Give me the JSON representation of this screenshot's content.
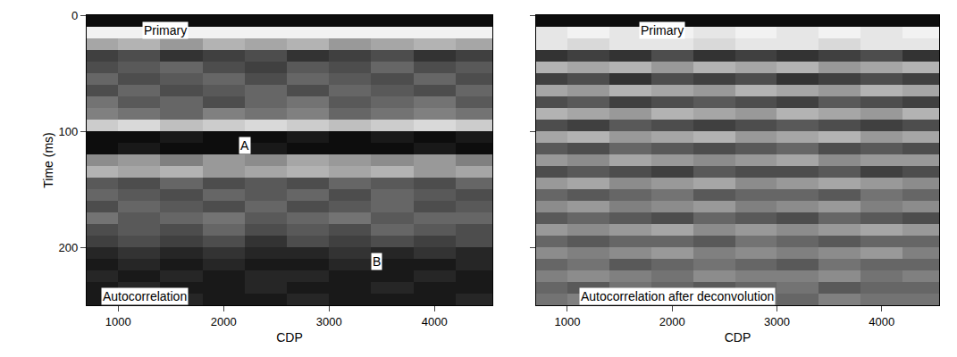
{
  "chart_data": [
    {
      "type": "heatmap",
      "x_label": "CDP",
      "y_label": "Time (ms)",
      "x": [
        800,
        1200,
        1600,
        2000,
        2400,
        2800,
        3200,
        3600,
        4000,
        4400
      ],
      "y": [
        5,
        15,
        25,
        35,
        45,
        55,
        65,
        75,
        85,
        95,
        105,
        115,
        125,
        135,
        145,
        155,
        165,
        175,
        185,
        195,
        205,
        215,
        225,
        235,
        245
      ],
      "xlim": [
        700,
        4550
      ],
      "xticks": [
        1000,
        2000,
        3000,
        4000
      ],
      "ylim": [
        250,
        0
      ],
      "yticks": [
        0,
        100,
        200
      ],
      "zlim": [
        0,
        1
      ],
      "z": [
        [
          0.95,
          0.95,
          0.95,
          0.95,
          0.95,
          0.95,
          0.95,
          0.95,
          0.95,
          0.95
        ],
        [
          0.05,
          0.05,
          0.05,
          0.05,
          0.05,
          0.05,
          0.05,
          0.05,
          0.05,
          0.05
        ],
        [
          0.35,
          0.3,
          0.4,
          0.3,
          0.35,
          0.3,
          0.4,
          0.35,
          0.3,
          0.35
        ],
        [
          0.75,
          0.7,
          0.8,
          0.75,
          0.7,
          0.8,
          0.75,
          0.7,
          0.8,
          0.75
        ],
        [
          0.7,
          0.65,
          0.6,
          0.7,
          0.75,
          0.65,
          0.7,
          0.6,
          0.7,
          0.65
        ],
        [
          0.6,
          0.7,
          0.65,
          0.6,
          0.7,
          0.6,
          0.65,
          0.7,
          0.6,
          0.7
        ],
        [
          0.7,
          0.6,
          0.7,
          0.65,
          0.6,
          0.7,
          0.6,
          0.65,
          0.7,
          0.6
        ],
        [
          0.55,
          0.65,
          0.6,
          0.7,
          0.6,
          0.55,
          0.65,
          0.6,
          0.55,
          0.65
        ],
        [
          0.5,
          0.55,
          0.6,
          0.5,
          0.55,
          0.5,
          0.6,
          0.55,
          0.5,
          0.55
        ],
        [
          0.2,
          0.15,
          0.25,
          0.2,
          0.15,
          0.2,
          0.25,
          0.2,
          0.15,
          0.2
        ],
        [
          0.95,
          0.95,
          0.9,
          0.95,
          0.95,
          0.9,
          0.95,
          0.9,
          0.95,
          0.9
        ],
        [
          0.95,
          0.9,
          0.95,
          0.95,
          0.9,
          0.95,
          0.95,
          0.95,
          0.9,
          0.95
        ],
        [
          0.45,
          0.4,
          0.5,
          0.4,
          0.45,
          0.35,
          0.4,
          0.45,
          0.4,
          0.5
        ],
        [
          0.3,
          0.35,
          0.3,
          0.4,
          0.35,
          0.3,
          0.35,
          0.3,
          0.4,
          0.35
        ],
        [
          0.65,
          0.7,
          0.6,
          0.7,
          0.65,
          0.7,
          0.6,
          0.65,
          0.7,
          0.6
        ],
        [
          0.6,
          0.65,
          0.7,
          0.6,
          0.65,
          0.6,
          0.7,
          0.6,
          0.65,
          0.7
        ],
        [
          0.7,
          0.6,
          0.65,
          0.7,
          0.6,
          0.7,
          0.65,
          0.6,
          0.7,
          0.65
        ],
        [
          0.55,
          0.65,
          0.6,
          0.55,
          0.65,
          0.6,
          0.55,
          0.65,
          0.6,
          0.6
        ],
        [
          0.7,
          0.65,
          0.7,
          0.6,
          0.7,
          0.65,
          0.7,
          0.6,
          0.65,
          0.7
        ],
        [
          0.75,
          0.7,
          0.75,
          0.7,
          0.8,
          0.7,
          0.75,
          0.7,
          0.75,
          0.7
        ],
        [
          0.85,
          0.8,
          0.85,
          0.8,
          0.85,
          0.85,
          0.8,
          0.85,
          0.8,
          0.85
        ],
        [
          0.9,
          0.85,
          0.9,
          0.85,
          0.9,
          0.9,
          0.85,
          0.9,
          0.9,
          0.85
        ],
        [
          0.85,
          0.9,
          0.85,
          0.9,
          0.85,
          0.85,
          0.9,
          0.9,
          0.85,
          0.9
        ],
        [
          0.9,
          0.85,
          0.9,
          0.9,
          0.85,
          0.9,
          0.9,
          0.85,
          0.9,
          0.9
        ],
        [
          0.9,
          0.9,
          0.85,
          0.9,
          0.9,
          0.85,
          0.9,
          0.9,
          0.9,
          0.85
        ]
      ],
      "tick_labels": true,
      "annotations": [
        {
          "text": "Primary",
          "x": 1450,
          "y": 13
        },
        {
          "text": "A",
          "x": 2200,
          "y": 112
        },
        {
          "text": "B",
          "x": 3450,
          "y": 212
        },
        {
          "text": "Autocorrelation",
          "x": 1250,
          "y": 242
        }
      ]
    },
    {
      "type": "heatmap",
      "x_label": "CDP",
      "x": [
        800,
        1200,
        1600,
        2000,
        2400,
        2800,
        3200,
        3600,
        4000,
        4400
      ],
      "y": [
        5,
        15,
        25,
        35,
        45,
        55,
        65,
        75,
        85,
        95,
        105,
        115,
        125,
        135,
        145,
        155,
        165,
        175,
        185,
        195,
        205,
        215,
        225,
        235,
        245
      ],
      "xlim": [
        700,
        4550
      ],
      "xticks": [
        1000,
        2000,
        3000,
        4000
      ],
      "ylim": [
        250,
        0
      ],
      "yticks": [
        0,
        100,
        200
      ],
      "zlim": [
        0,
        1
      ],
      "z": [
        [
          0.95,
          0.95,
          0.95,
          0.95,
          0.95,
          0.95,
          0.95,
          0.95,
          0.95,
          0.95
        ],
        [
          0.1,
          0.05,
          0.1,
          0.05,
          0.1,
          0.05,
          0.1,
          0.05,
          0.1,
          0.05
        ],
        [
          0.1,
          0.15,
          0.1,
          0.1,
          0.15,
          0.1,
          0.1,
          0.15,
          0.1,
          0.1
        ],
        [
          0.8,
          0.75,
          0.8,
          0.7,
          0.8,
          0.75,
          0.8,
          0.75,
          0.7,
          0.8
        ],
        [
          0.3,
          0.35,
          0.3,
          0.4,
          0.3,
          0.35,
          0.3,
          0.4,
          0.35,
          0.3
        ],
        [
          0.75,
          0.7,
          0.8,
          0.7,
          0.75,
          0.7,
          0.8,
          0.75,
          0.7,
          0.75
        ],
        [
          0.35,
          0.4,
          0.3,
          0.35,
          0.4,
          0.3,
          0.35,
          0.4,
          0.3,
          0.35
        ],
        [
          0.7,
          0.65,
          0.75,
          0.7,
          0.65,
          0.7,
          0.75,
          0.65,
          0.7,
          0.75
        ],
        [
          0.3,
          0.35,
          0.4,
          0.3,
          0.35,
          0.4,
          0.3,
          0.35,
          0.4,
          0.3
        ],
        [
          0.7,
          0.75,
          0.65,
          0.7,
          0.75,
          0.7,
          0.65,
          0.7,
          0.75,
          0.7
        ],
        [
          0.35,
          0.3,
          0.4,
          0.35,
          0.3,
          0.4,
          0.35,
          0.3,
          0.4,
          0.35
        ],
        [
          0.65,
          0.7,
          0.6,
          0.65,
          0.7,
          0.65,
          0.6,
          0.7,
          0.65,
          0.7
        ],
        [
          0.4,
          0.45,
          0.35,
          0.4,
          0.45,
          0.4,
          0.35,
          0.45,
          0.4,
          0.4
        ],
        [
          0.7,
          0.65,
          0.7,
          0.75,
          0.65,
          0.7,
          0.7,
          0.65,
          0.75,
          0.7
        ],
        [
          0.4,
          0.35,
          0.45,
          0.4,
          0.35,
          0.45,
          0.4,
          0.35,
          0.4,
          0.45
        ],
        [
          0.6,
          0.65,
          0.6,
          0.55,
          0.65,
          0.6,
          0.6,
          0.65,
          0.55,
          0.6
        ],
        [
          0.45,
          0.4,
          0.5,
          0.45,
          0.4,
          0.5,
          0.45,
          0.4,
          0.5,
          0.45
        ],
        [
          0.65,
          0.6,
          0.65,
          0.7,
          0.6,
          0.65,
          0.7,
          0.6,
          0.65,
          0.7
        ],
        [
          0.4,
          0.45,
          0.4,
          0.35,
          0.45,
          0.4,
          0.45,
          0.4,
          0.35,
          0.4
        ],
        [
          0.6,
          0.65,
          0.6,
          0.6,
          0.65,
          0.55,
          0.6,
          0.65,
          0.6,
          0.6
        ],
        [
          0.45,
          0.5,
          0.45,
          0.4,
          0.5,
          0.45,
          0.5,
          0.45,
          0.4,
          0.5
        ],
        [
          0.6,
          0.55,
          0.65,
          0.6,
          0.55,
          0.6,
          0.65,
          0.55,
          0.6,
          0.6
        ],
        [
          0.5,
          0.45,
          0.5,
          0.55,
          0.45,
          0.5,
          0.5,
          0.45,
          0.55,
          0.5
        ],
        [
          0.6,
          0.65,
          0.55,
          0.6,
          0.65,
          0.6,
          0.55,
          0.65,
          0.6,
          0.6
        ],
        [
          0.55,
          0.5,
          0.6,
          0.55,
          0.5,
          0.55,
          0.6,
          0.5,
          0.55,
          0.55
        ]
      ],
      "tick_labels": "x",
      "annotations": [
        {
          "text": "Primary",
          "x": 1900,
          "y": 13
        },
        {
          "text": "Autocorrelation after deconvolution",
          "x": 2050,
          "y": 242
        }
      ]
    }
  ]
}
